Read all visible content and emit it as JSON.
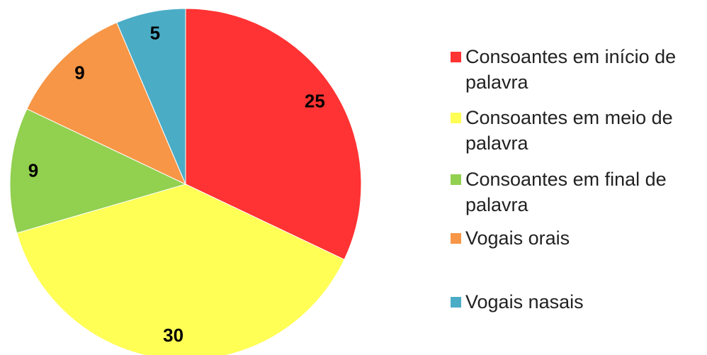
{
  "chart_data": {
    "type": "pie",
    "categories": [
      "Consoantes em início de palavra",
      "Consoantes em meio de palavra",
      "Consoantes em final de palavra",
      "Vogais orais",
      "Vogais nasais"
    ],
    "values": [
      25,
      30,
      9,
      9,
      5
    ],
    "colors": [
      "#ff3333",
      "#ffff55",
      "#92d050",
      "#f79646",
      "#4bacc6"
    ],
    "legend": "right"
  }
}
